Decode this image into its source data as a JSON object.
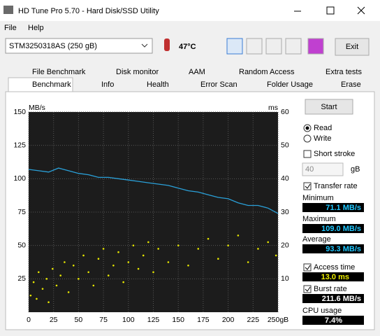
{
  "window": {
    "title": "HD Tune Pro 5.70 - Hard Disk/SSD Utility"
  },
  "menu": [
    "File",
    "Help"
  ],
  "toolbar": {
    "drive": "STM3250318AS (250 gB)",
    "temperature": "47°C",
    "exit": "Exit"
  },
  "tabs": {
    "row1": [
      "File Benchmark",
      "Disk monitor",
      "AAM",
      "Random Access",
      "Extra tests"
    ],
    "row2": [
      "Benchmark",
      "Info",
      "Health",
      "Error Scan",
      "Folder Usage",
      "Erase"
    ]
  },
  "chart": {
    "type": "line",
    "y_label": "MB/s",
    "y2_label": "ms",
    "xlim": [
      0,
      250
    ],
    "ylim": [
      0,
      150
    ],
    "y2lim": [
      0,
      60
    ],
    "xticks": [
      0,
      25,
      50,
      75,
      100,
      125,
      150,
      175,
      200,
      225,
      {
        "value": 250,
        "label": "250gB"
      }
    ],
    "yticks": [
      25,
      50,
      75,
      100,
      125,
      150
    ],
    "y2ticks": [
      10,
      20,
      30,
      40,
      50,
      60
    ],
    "grid": true,
    "transfer_rate": {
      "color": "#2aa0d8",
      "x": [
        0,
        10,
        20,
        30,
        40,
        50,
        60,
        70,
        80,
        90,
        100,
        110,
        120,
        130,
        140,
        150,
        160,
        170,
        180,
        190,
        200,
        210,
        220,
        230,
        240,
        250
      ],
      "values": [
        107,
        106,
        105,
        108,
        106,
        104,
        103,
        101,
        101,
        100,
        99,
        98,
        97,
        96,
        95,
        93,
        91,
        90,
        88,
        86,
        85,
        82,
        80,
        80,
        78,
        74
      ]
    },
    "access_time": {
      "color": "#e6e600",
      "axis": "y2",
      "x": [
        2,
        5,
        8,
        10,
        14,
        18,
        20,
        24,
        28,
        32,
        36,
        40,
        45,
        50,
        55,
        60,
        65,
        70,
        75,
        80,
        85,
        90,
        95,
        100,
        105,
        110,
        115,
        120,
        125,
        130,
        140,
        150,
        160,
        170,
        180,
        190,
        200,
        210,
        220,
        230,
        240,
        248
      ],
      "values": [
        5,
        9,
        4,
        12,
        7,
        10,
        3,
        13,
        8,
        11,
        15,
        6,
        14,
        10,
        17,
        12,
        8,
        16,
        19,
        11,
        14,
        18,
        9,
        15,
        20,
        13,
        17,
        21,
        12,
        19,
        15,
        20,
        14,
        19,
        22,
        16,
        20,
        23,
        15,
        19,
        21,
        17
      ]
    }
  },
  "panel": {
    "start": "Start",
    "read": "Read",
    "write": "Write",
    "short_stroke": "Short stroke",
    "stroke_size": "40",
    "stroke_unit": "gB",
    "transfer_rate": "Transfer rate",
    "minimum": {
      "label": "Minimum",
      "value": "71.1 MB/s"
    },
    "maximum": {
      "label": "Maximum",
      "value": "109.0 MB/s"
    },
    "average": {
      "label": "Average",
      "value": "93.3 MB/s"
    },
    "access_time": {
      "label": "Access time",
      "value": "13.0 ms"
    },
    "burst_rate": {
      "label": "Burst rate",
      "value": "211.6 MB/s"
    },
    "cpu_usage": {
      "label": "CPU usage",
      "value": "7.4%"
    }
  }
}
